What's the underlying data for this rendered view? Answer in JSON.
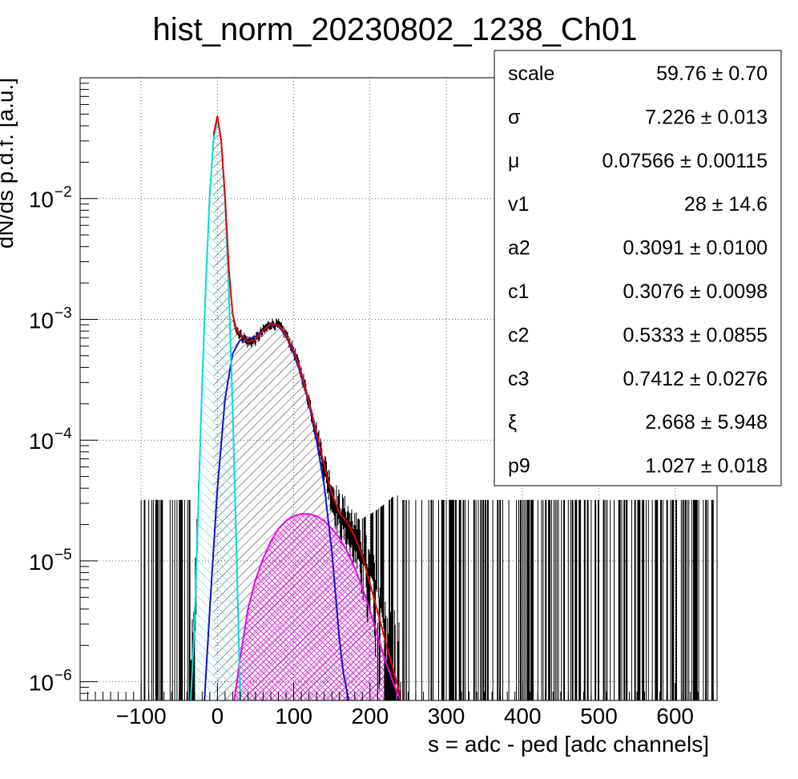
{
  "chart_data": {
    "type": "histogram",
    "title": "hist_norm_20230802_1238_Ch01",
    "xlabel": "s = adc - ped [adc channels]",
    "ylabel": "dN/ds p.d.f. [a.u.]",
    "xlim": [
      -180,
      655
    ],
    "ylim": [
      7e-07,
      0.1
    ],
    "yscale": "log",
    "grid": true,
    "x_ticks": [
      {
        "value": -100,
        "label": "−100"
      },
      {
        "value": 0,
        "label": "0"
      },
      {
        "value": 100,
        "label": "100"
      },
      {
        "value": 200,
        "label": "200"
      },
      {
        "value": 300,
        "label": "300"
      },
      {
        "value": 400,
        "label": "400"
      },
      {
        "value": 500,
        "label": "500"
      },
      {
        "value": 600,
        "label": "600"
      }
    ],
    "y_ticks": [
      {
        "value": 1e-06,
        "base": "10",
        "exp": "−6"
      },
      {
        "value": 1e-05,
        "base": "10",
        "exp": "−5"
      },
      {
        "value": 0.0001,
        "base": "10",
        "exp": "−4"
      },
      {
        "value": 0.001,
        "base": "10",
        "exp": "−3"
      },
      {
        "value": 0.01,
        "base": "10",
        "exp": "−2"
      }
    ],
    "fit_curves": [
      {
        "color": "#ee0000",
        "role": "total fit",
        "x": [
          -5,
          0,
          5,
          10,
          15,
          20,
          25,
          30,
          40,
          50,
          60,
          70,
          80,
          90,
          100,
          110,
          120,
          130,
          140,
          150,
          160,
          170,
          180,
          190,
          200,
          210,
          220,
          230,
          240
        ],
        "y": [
          0.034,
          0.048,
          0.03,
          0.0105,
          0.0026,
          0.0011,
          0.00082,
          0.00075,
          0.00065,
          0.00068,
          0.00081,
          0.00092,
          0.0009,
          0.00075,
          0.00055,
          0.00036,
          0.00021,
          0.000115,
          6.2e-05,
          3.6e-05,
          2.5e-05,
          2.1e-05,
          1.6e-05,
          1.1e-05,
          6.5e-06,
          3.8e-06,
          2.2e-06,
          1.3e-06,
          7.5e-07
        ]
      },
      {
        "color": "#00dddd",
        "role": "pedestal component",
        "x": [
          -35,
          -30,
          -25,
          -20,
          -15,
          -10,
          -5,
          0,
          5,
          10,
          15,
          20,
          25,
          30
        ],
        "y": [
          7e-07,
          3e-06,
          3e-05,
          0.0003,
          0.0021,
          0.011,
          0.031,
          0.046,
          0.03,
          0.0095,
          0.0017,
          0.00018,
          1.2e-05,
          7e-07
        ],
        "fill": "hatch"
      },
      {
        "color": "#1010cc",
        "role": "single-photoelectron component",
        "x": [
          -17,
          -10,
          0,
          10,
          20,
          30,
          40,
          50,
          60,
          70,
          80,
          90,
          100,
          110,
          120,
          130,
          140,
          150,
          160,
          165,
          172
        ],
        "y": [
          7e-07,
          4e-06,
          4e-05,
          0.00022,
          0.00052,
          0.00068,
          0.00068,
          0.00072,
          0.00082,
          0.0009,
          0.00088,
          0.00073,
          0.00052,
          0.00034,
          0.0002,
          0.0001,
          4.2e-05,
          1.2e-05,
          2.2e-06,
          1.2e-06,
          7e-07
        ]
      },
      {
        "color": "#ee00ee",
        "role": "two-photoelectron component",
        "x": [
          22,
          30,
          40,
          50,
          60,
          70,
          80,
          90,
          100,
          110,
          120,
          130,
          140,
          150,
          160,
          170,
          180,
          190,
          200,
          210,
          220,
          230,
          240
        ],
        "y": [
          7e-07,
          1.6e-06,
          4e-06,
          7e-06,
          1.05e-05,
          1.45e-05,
          1.85e-05,
          2.15e-05,
          2.35e-05,
          2.45e-05,
          2.45e-05,
          2.35e-05,
          2.15e-05,
          1.85e-05,
          1.55e-05,
          1.2e-05,
          8.8e-06,
          6e-06,
          3.9e-06,
          2.4e-06,
          1.5e-06,
          1e-06,
          7e-07
        ],
        "fill": "cross-hatch"
      }
    ],
    "data_histogram": {
      "color": "#000000",
      "x_range": [
        -100,
        650
      ],
      "bin_width": 1
    }
  },
  "stats_box": {
    "rows": [
      {
        "name": "scale",
        "value": "59.76 ± 0.70"
      },
      {
        "name": "σ",
        "value": "7.226 ± 0.013"
      },
      {
        "name": "μ",
        "value": "0.07566 ± 0.00115"
      },
      {
        "name": "v1",
        "value": "28 ± 14.6"
      },
      {
        "name": "a2",
        "value": "0.3091 ± 0.0100"
      },
      {
        "name": "c1",
        "value": "0.3076 ± 0.0098"
      },
      {
        "name": "c2",
        "value": "0.5333 ± 0.0855"
      },
      {
        "name": "c3",
        "value": "0.7412 ± 0.0276"
      },
      {
        "name": "ξ",
        "value": "2.668 ± 5.948"
      },
      {
        "name": "p9",
        "value": "1.027 ± 0.018"
      }
    ]
  }
}
